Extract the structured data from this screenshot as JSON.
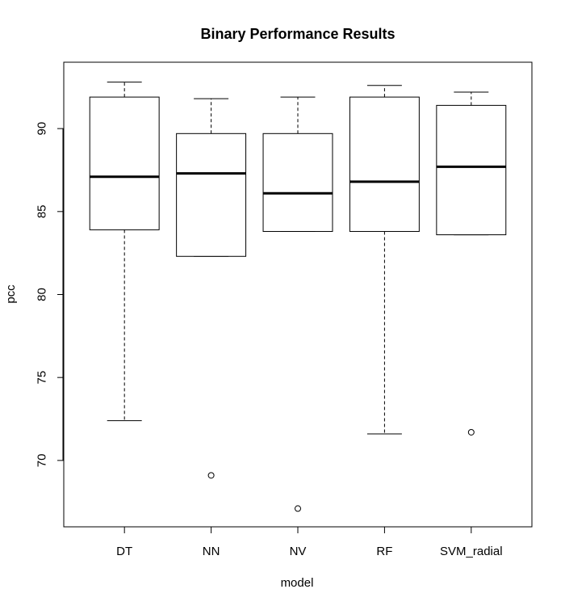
{
  "chart_data": {
    "type": "boxplot",
    "title": "Binary Performance Results",
    "xlabel": "model",
    "ylabel": "pcc",
    "categories": [
      "DT",
      "NN",
      "NV",
      "RF",
      "SVM_radial"
    ],
    "boxes": [
      {
        "category": "DT",
        "whisker_low": 72.4,
        "q1": 83.9,
        "median": 87.1,
        "q3": 91.9,
        "whisker_high": 92.8,
        "outliers": []
      },
      {
        "category": "NN",
        "whisker_low": 82.3,
        "q1": 82.3,
        "median": 87.3,
        "q3": 89.7,
        "whisker_high": 91.8,
        "outliers": [
          69.1
        ]
      },
      {
        "category": "NV",
        "whisker_low": 83.8,
        "q1": 83.8,
        "median": 86.1,
        "q3": 89.7,
        "whisker_high": 91.9,
        "outliers": [
          67.1
        ]
      },
      {
        "category": "RF",
        "whisker_low": 71.6,
        "q1": 83.8,
        "median": 86.8,
        "q3": 91.9,
        "whisker_high": 92.6,
        "outliers": []
      },
      {
        "category": "SVM_radial",
        "whisker_low": 83.6,
        "q1": 83.6,
        "median": 87.7,
        "q3": 91.4,
        "whisker_high": 92.2,
        "outliers": [
          71.7
        ]
      }
    ],
    "yticks": [
      70,
      75,
      80,
      85,
      90
    ],
    "ylim": [
      66.0,
      94.0
    ],
    "grid": false,
    "colors": {
      "box_fill": "#ffffff",
      "stroke": "#000000",
      "background": "#ffffff"
    }
  }
}
